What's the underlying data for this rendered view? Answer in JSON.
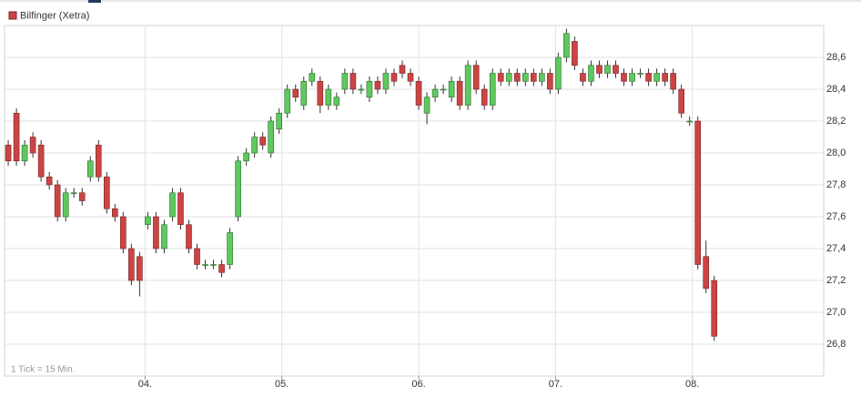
{
  "chart_data": {
    "type": "candlestick",
    "note": "1 Tick = 15 Min.",
    "xlim": [
      2.973,
      8.96
    ],
    "ylim": [
      26.6,
      28.8
    ],
    "xticks": [
      {
        "value": 4,
        "label": "04."
      },
      {
        "value": 5,
        "label": "05."
      },
      {
        "value": 6,
        "label": "06."
      },
      {
        "value": 7,
        "label": "07."
      },
      {
        "value": 8,
        "label": "08."
      }
    ],
    "yticks": [
      {
        "value": 26.8,
        "label": "26,8"
      },
      {
        "value": 27.0,
        "label": "27,0"
      },
      {
        "value": 27.2,
        "label": "27,2"
      },
      {
        "value": 27.4,
        "label": "27,4"
      },
      {
        "value": 27.6,
        "label": "27,6"
      },
      {
        "value": 27.8,
        "label": "27,8"
      },
      {
        "value": 28.0,
        "label": "28,0"
      },
      {
        "value": 28.2,
        "label": "28,2"
      },
      {
        "value": 28.4,
        "label": "28,4"
      },
      {
        "value": 28.6,
        "label": "28,6"
      }
    ],
    "grid": true,
    "series": [
      {
        "name": "Bilfinger (Xetra)",
        "color": "#cc4444",
        "up_color": "#5ec95e",
        "x": [
          3.0,
          3.06,
          3.12,
          3.18,
          3.24,
          3.3,
          3.36,
          3.42,
          3.48,
          3.54,
          3.6,
          3.66,
          3.72,
          3.78,
          3.84,
          3.9,
          3.96,
          4.02,
          4.08,
          4.14,
          4.2,
          4.26,
          4.32,
          4.38,
          4.44,
          4.5,
          4.56,
          4.62,
          4.68,
          4.74,
          4.8,
          4.86,
          4.92,
          4.98,
          5.04,
          5.1,
          5.16,
          5.22,
          5.28,
          5.34,
          5.4,
          5.46,
          5.52,
          5.58,
          5.64,
          5.7,
          5.76,
          5.82,
          5.88,
          5.94,
          6.0,
          6.06,
          6.12,
          6.18,
          6.24,
          6.3,
          6.36,
          6.42,
          6.48,
          6.54,
          6.6,
          6.66,
          6.72,
          6.78,
          6.84,
          6.9,
          6.96,
          7.02,
          7.08,
          7.14,
          7.2,
          7.26,
          7.32,
          7.38,
          7.44,
          7.5,
          7.56,
          7.62,
          7.68,
          7.74,
          7.8,
          7.86,
          7.92,
          7.98,
          8.04,
          8.1,
          8.16
        ],
        "open": [
          28.05,
          28.25,
          27.95,
          28.1,
          28.05,
          27.85,
          27.8,
          27.6,
          27.75,
          27.75,
          27.85,
          28.05,
          27.85,
          27.65,
          27.6,
          27.4,
          27.35,
          27.55,
          27.6,
          27.4,
          27.6,
          27.75,
          27.55,
          27.4,
          27.3,
          27.3,
          27.3,
          27.3,
          27.6,
          27.95,
          28.0,
          28.1,
          28.0,
          28.15,
          28.25,
          28.4,
          28.3,
          28.45,
          28.45,
          28.3,
          28.3,
          28.4,
          28.5,
          28.4,
          28.35,
          28.45,
          28.4,
          28.5,
          28.55,
          28.5,
          28.45,
          28.25,
          28.35,
          28.4,
          28.35,
          28.45,
          28.3,
          28.55,
          28.4,
          28.3,
          28.5,
          28.45,
          28.5,
          28.45,
          28.5,
          28.45,
          28.5,
          28.4,
          28.6,
          28.7,
          28.5,
          28.45,
          28.55,
          28.5,
          28.55,
          28.5,
          28.45,
          28.5,
          28.5,
          28.45,
          28.5,
          28.5,
          28.4,
          28.2,
          28.2,
          27.35,
          27.2
        ],
        "high": [
          28.08,
          28.28,
          28.08,
          28.13,
          28.08,
          27.88,
          27.83,
          27.78,
          27.78,
          27.78,
          27.98,
          28.08,
          27.88,
          27.68,
          27.63,
          27.43,
          27.38,
          27.63,
          27.63,
          27.58,
          27.78,
          27.78,
          27.58,
          27.43,
          27.33,
          27.33,
          27.33,
          27.53,
          27.98,
          28.03,
          28.13,
          28.13,
          28.23,
          28.28,
          28.43,
          28.43,
          28.48,
          28.53,
          28.48,
          28.43,
          28.38,
          28.53,
          28.53,
          28.43,
          28.48,
          28.48,
          28.53,
          28.53,
          28.58,
          28.53,
          28.48,
          28.38,
          28.43,
          28.43,
          28.48,
          28.48,
          28.58,
          28.58,
          28.43,
          28.53,
          28.53,
          28.53,
          28.53,
          28.53,
          28.53,
          28.53,
          28.53,
          28.63,
          28.78,
          28.73,
          28.53,
          28.58,
          28.58,
          28.58,
          28.58,
          28.53,
          28.53,
          28.53,
          28.53,
          28.53,
          28.53,
          28.53,
          28.43,
          28.23,
          28.23,
          27.45,
          27.23
        ],
        "low": [
          27.92,
          27.92,
          27.92,
          27.97,
          27.82,
          27.77,
          27.57,
          27.57,
          27.72,
          27.67,
          27.82,
          27.82,
          27.62,
          27.57,
          27.37,
          27.17,
          27.1,
          27.52,
          27.37,
          27.37,
          27.57,
          27.52,
          27.37,
          27.27,
          27.27,
          27.27,
          27.22,
          27.27,
          27.57,
          27.92,
          27.97,
          28.02,
          27.97,
          28.12,
          28.22,
          28.32,
          28.27,
          28.42,
          28.25,
          28.27,
          28.27,
          28.37,
          28.37,
          28.37,
          28.32,
          28.37,
          28.37,
          28.42,
          28.47,
          28.42,
          28.27,
          28.18,
          28.32,
          28.37,
          28.32,
          28.27,
          28.27,
          28.37,
          28.27,
          28.27,
          28.42,
          28.42,
          28.42,
          28.42,
          28.42,
          28.42,
          28.37,
          28.37,
          28.57,
          28.52,
          28.42,
          28.42,
          28.47,
          28.47,
          28.47,
          28.42,
          28.42,
          28.47,
          28.42,
          28.42,
          28.42,
          28.37,
          28.22,
          28.17,
          27.27,
          27.12,
          26.82
        ],
        "close": [
          27.95,
          27.95,
          28.05,
          28.0,
          27.85,
          27.8,
          27.6,
          27.75,
          27.75,
          27.7,
          27.95,
          27.85,
          27.65,
          27.6,
          27.4,
          27.2,
          27.2,
          27.6,
          27.4,
          27.55,
          27.75,
          27.55,
          27.4,
          27.3,
          27.3,
          27.3,
          27.25,
          27.5,
          27.95,
          28.0,
          28.1,
          28.05,
          28.2,
          28.25,
          28.4,
          28.35,
          28.45,
          28.5,
          28.3,
          28.4,
          28.35,
          28.5,
          28.4,
          28.4,
          28.45,
          28.4,
          28.5,
          28.45,
          28.5,
          28.45,
          28.3,
          28.35,
          28.4,
          28.4,
          28.45,
          28.3,
          28.55,
          28.4,
          28.3,
          28.5,
          28.45,
          28.5,
          28.45,
          28.5,
          28.45,
          28.5,
          28.4,
          28.6,
          28.75,
          28.55,
          28.45,
          28.55,
          28.5,
          28.55,
          28.5,
          28.45,
          28.5,
          28.5,
          28.45,
          28.5,
          28.45,
          28.4,
          28.25,
          28.2,
          27.3,
          27.15,
          26.85
        ]
      }
    ]
  }
}
